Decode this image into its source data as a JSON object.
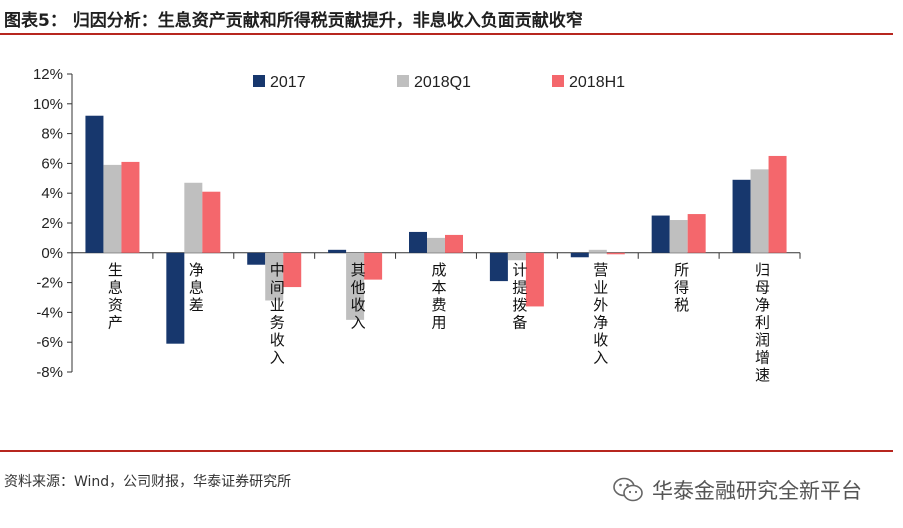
{
  "header": {
    "title": "图表5：  归因分析：生息资产贡献和所得税贡献提升，非息收入负面贡献收窄"
  },
  "footer": {
    "source": "资料来源：Wind，公司财报，华泰证券研究所",
    "watermark": "华泰金融研究全新平台",
    "watermark_icon": "wechat-icon"
  },
  "colors": {
    "s2017": "#17376d",
    "s2018Q1": "#bfbfbf",
    "s2018H1": "#f4676c",
    "rule": "#b7261f"
  },
  "chart_data": {
    "type": "bar",
    "title": "",
    "xlabel": "",
    "ylabel": "",
    "ylim": [
      -8,
      12
    ],
    "yticks": [
      "-8%",
      "-6%",
      "-4%",
      "-2%",
      "0%",
      "2%",
      "4%",
      "6%",
      "8%",
      "10%",
      "12%"
    ],
    "grid": false,
    "legend_position": "top",
    "categories": [
      "生息资产",
      "净息差",
      "中间业务收入",
      "其他收入",
      "成本费用",
      "计提拨备",
      "营业外净收入",
      "所得税",
      "归母净利润增速"
    ],
    "series": [
      {
        "name": "2017",
        "values": [
          9.2,
          -6.1,
          -0.8,
          0.2,
          1.4,
          -1.9,
          -0.3,
          2.5,
          4.9
        ]
      },
      {
        "name": "2018Q1",
        "values": [
          5.9,
          4.7,
          -3.2,
          -4.5,
          1.0,
          -0.5,
          0.2,
          2.2,
          5.6
        ]
      },
      {
        "name": "2018H1",
        "values": [
          6.1,
          4.1,
          -2.3,
          -1.8,
          1.2,
          -3.6,
          -0.1,
          2.6,
          6.5
        ]
      }
    ]
  }
}
